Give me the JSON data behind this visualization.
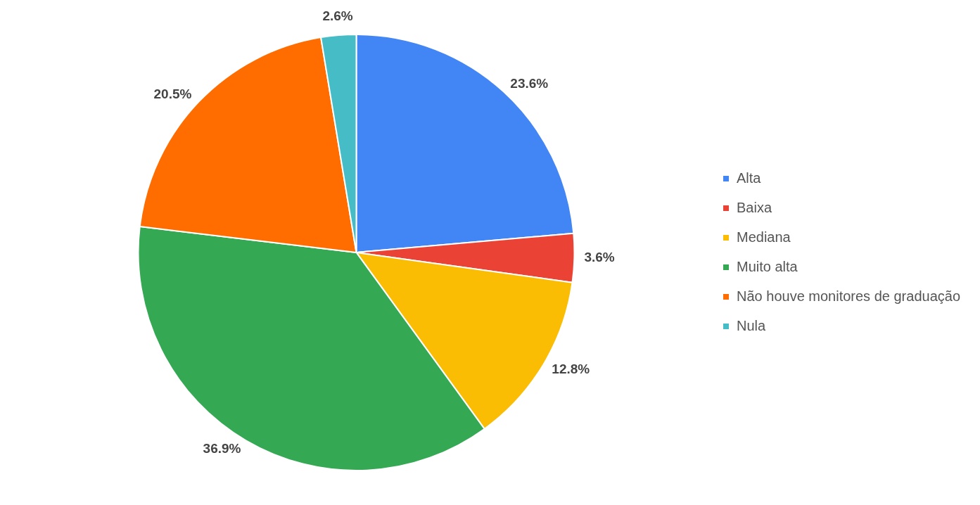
{
  "chart_data": {
    "type": "pie",
    "categories": [
      "Alta",
      "Baixa",
      "Mediana",
      "Muito alta",
      "Não houve monitores de graduação",
      "Nula"
    ],
    "values": [
      23.6,
      3.6,
      12.8,
      36.9,
      20.5,
      2.6
    ],
    "colors": [
      "#4285f4",
      "#ea4335",
      "#fbbc04",
      "#34a853",
      "#ff6d01",
      "#46bdc6"
    ],
    "value_labels": [
      "23.6%",
      "3.6%",
      "12.8%",
      "36.9%",
      "20.5%",
      "2.6%"
    ],
    "legend": "right"
  }
}
